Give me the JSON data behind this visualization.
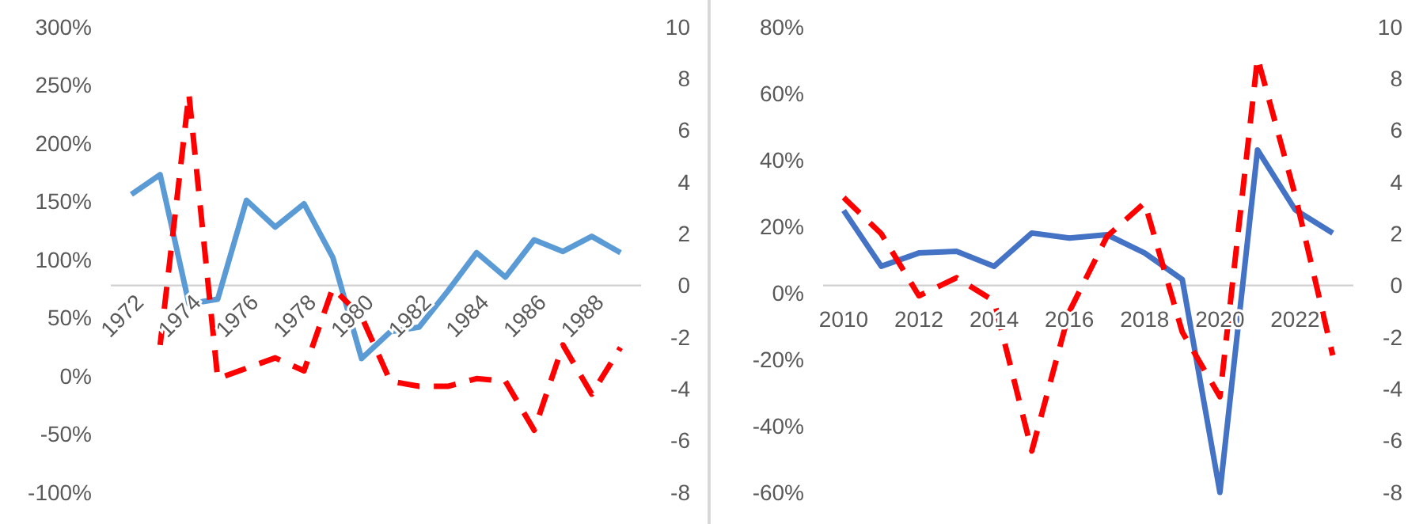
{
  "chart_data": [
    {
      "type": "line",
      "categories": [
        "1972",
        null,
        "1974",
        null,
        "1976",
        null,
        "1978",
        null,
        "1980",
        null,
        "1982",
        null,
        "1984",
        null,
        "1986",
        null,
        "1988",
        null
      ],
      "series": [
        {
          "color": "#5b9bd5",
          "values": [
            156,
            173,
            62,
            66,
            151,
            128,
            148,
            102,
            15,
            38,
            42,
            73,
            106,
            85,
            117,
            107,
            120,
            106
          ]
        },
        {
          "color": "#ff0000",
          "axis": "y2",
          "line_style": "dashed",
          "values": [
            null,
            -2.3,
            7.4,
            -3.6,
            -3.2,
            -2.8,
            -3.3,
            -0.1,
            -1.2,
            -3.7,
            -3.9,
            -3.9,
            -3.6,
            -3.7,
            -5.6,
            -2.3,
            -4.2,
            -2.4
          ]
        }
      ],
      "ylim": [
        -100,
        300
      ],
      "yticks": [
        {
          "value": -100,
          "label": "-100%"
        },
        {
          "value": -50,
          "label": "-50%"
        },
        {
          "value": 0,
          "label": "0%"
        },
        {
          "value": 50,
          "label": "50%"
        },
        {
          "value": 100,
          "label": "100%"
        },
        {
          "value": 150,
          "label": "150%"
        },
        {
          "value": 200,
          "label": "200%"
        },
        {
          "value": 250,
          "label": "250%"
        },
        {
          "value": 300,
          "label": "300%"
        }
      ],
      "y2lim": [
        -8,
        10
      ],
      "y2ticks": [
        -8,
        -6,
        -4,
        -2,
        0,
        2,
        4,
        6,
        8,
        10
      ],
      "grid": false
    },
    {
      "type": "line",
      "categories": [
        "2010",
        null,
        "2012",
        null,
        "2014",
        null,
        "2016",
        null,
        "2018",
        null,
        "2020",
        null,
        "2022",
        null
      ],
      "series": [
        {
          "color": "#4472c4",
          "values": [
            24.8,
            8,
            12,
            12.5,
            8,
            18,
            16.5,
            17.5,
            12,
            4,
            -60,
            43,
            25,
            18
          ]
        },
        {
          "color": "#ff0000",
          "axis": "y2",
          "line_style": "dashed",
          "values": [
            3.4,
            2.0,
            -0.4,
            0.3,
            -0.6,
            -6.4,
            -1.0,
            1.9,
            3.2,
            -1.8,
            -4.3,
            8.8,
            3.5,
            -2.7
          ]
        }
      ],
      "ylim": [
        -60,
        80
      ],
      "yticks": [
        {
          "value": -60,
          "label": "-60%"
        },
        {
          "value": -40,
          "label": "-40%"
        },
        {
          "value": -20,
          "label": "-20%"
        },
        {
          "value": 0,
          "label": "0%"
        },
        {
          "value": 20,
          "label": "20%"
        },
        {
          "value": 40,
          "label": "40%"
        },
        {
          "value": 60,
          "label": "60%"
        },
        {
          "value": 80,
          "label": "80%"
        }
      ],
      "y2lim": [
        -8,
        10
      ],
      "y2ticks": [
        -8,
        -6,
        -4,
        -2,
        0,
        2,
        4,
        6,
        8,
        10
      ],
      "grid": false
    }
  ]
}
